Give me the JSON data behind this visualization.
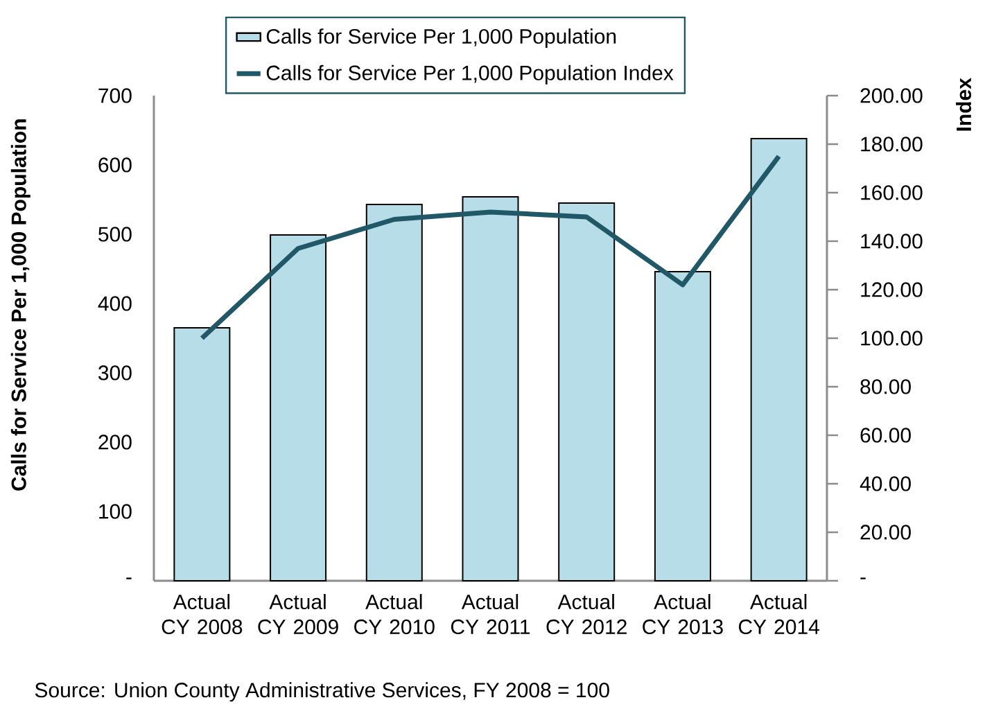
{
  "chart_data": {
    "type": "bar",
    "categories": [
      "Actual CY 2008",
      "Actual CY 2009",
      "Actual CY 2010",
      "Actual CY 2011",
      "Actual CY 2012",
      "Actual CY 2013",
      "Actual CY 2014"
    ],
    "series": [
      {
        "name": "Calls for Service Per 1,000 Population",
        "color": "#b7dde8",
        "values": [
          365,
          499,
          543,
          554,
          545,
          446,
          638
        ]
      },
      {
        "name": "Calls for Service Per 1,000 Population Index",
        "type": "line",
        "axis": "y2",
        "color": "#215868",
        "values": [
          100,
          137,
          149,
          152,
          150,
          122,
          175
        ]
      }
    ],
    "ylabel": "Calls for Service Per 1,000 Population",
    "y2label": "Index",
    "ylim": [
      0,
      700
    ],
    "yticks": [
      {
        "value": 0,
        "label": "-"
      },
      100,
      200,
      300,
      400,
      500,
      600,
      700
    ],
    "y2lim": [
      0,
      200
    ],
    "y2ticks": [
      {
        "value": 0,
        "label": "-"
      },
      {
        "value": 20,
        "label": "20.00"
      },
      {
        "value": 40,
        "label": "40.00"
      },
      {
        "value": 60,
        "label": "60.00"
      },
      {
        "value": 80,
        "label": "80.00"
      },
      {
        "value": 100,
        "label": "100.00"
      },
      {
        "value": 120,
        "label": "120.00"
      },
      {
        "value": 140,
        "label": "140.00"
      },
      {
        "value": 160,
        "label": "160.00"
      },
      {
        "value": 180,
        "label": "180.00"
      },
      {
        "value": 200,
        "label": "200.00"
      }
    ],
    "legend": "top",
    "annotations": [
      "Source: Union County Administrative Services, FY 2008 = 100"
    ]
  }
}
